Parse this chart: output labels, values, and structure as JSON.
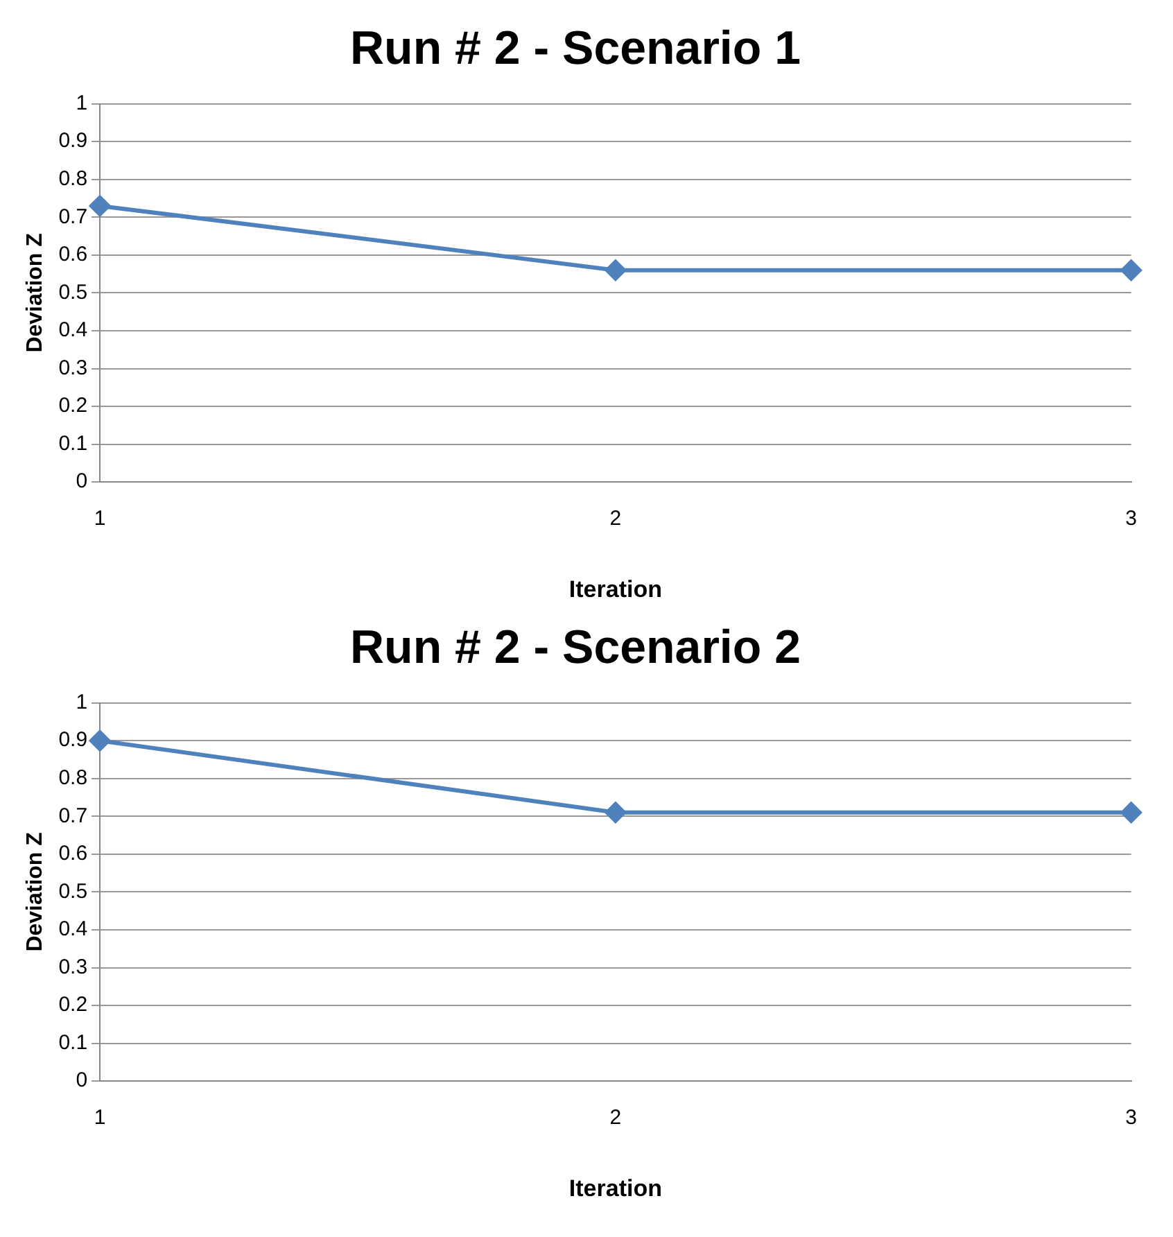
{
  "chart_data": [
    {
      "type": "line",
      "title": "Run # 2 - Scenario 1",
      "xlabel": "Iteration",
      "ylabel": "Deviation Z",
      "categories": [
        "1",
        "2",
        "3"
      ],
      "series": [
        {
          "color": "#4f81bd",
          "values": [
            0.73,
            0.56,
            0.56
          ]
        }
      ],
      "ylim": [
        0,
        1
      ],
      "yticks": [
        0,
        0.1,
        0.2,
        0.3,
        0.4,
        0.5,
        0.6,
        0.7,
        0.8,
        0.9,
        1
      ],
      "grid": "y",
      "legend": false,
      "marker": "diamond",
      "line_style": "solid"
    },
    {
      "type": "line",
      "title": "Run # 2 - Scenario 2",
      "xlabel": "Iteration",
      "ylabel": "Deviation Z",
      "categories": [
        "1",
        "2",
        "3"
      ],
      "series": [
        {
          "color": "#4f81bd",
          "values": [
            0.9,
            0.71,
            0.71
          ]
        }
      ],
      "ylim": [
        0,
        1
      ],
      "yticks": [
        0,
        0.1,
        0.2,
        0.3,
        0.4,
        0.5,
        0.6,
        0.7,
        0.8,
        0.9,
        1
      ],
      "grid": "y",
      "legend": false,
      "marker": "diamond",
      "line_style": "solid"
    }
  ]
}
